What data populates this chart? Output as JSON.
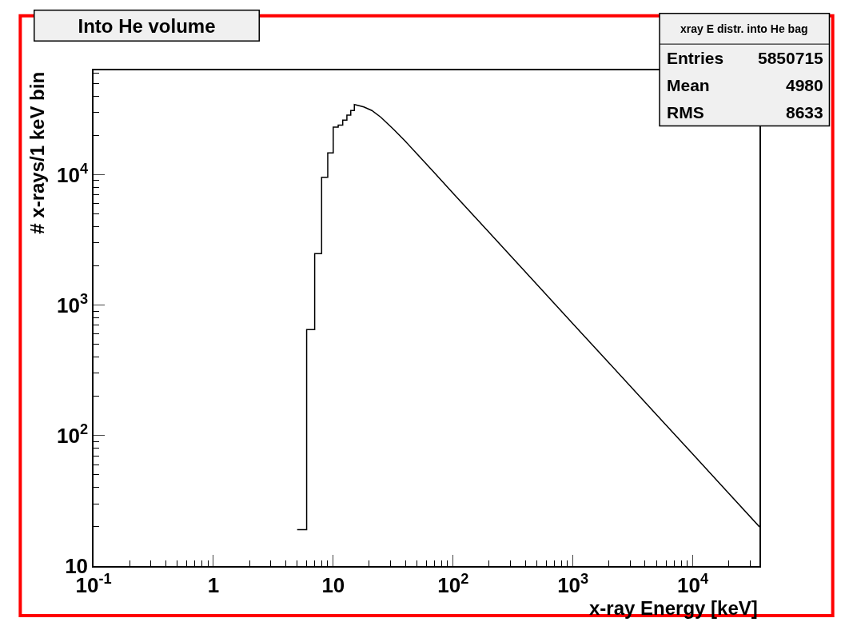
{
  "chart_data": {
    "type": "line",
    "title": "Into He volume",
    "xlabel": "x-ray Energy [keV]",
    "ylabel": "# x-rays/1 keV bin",
    "log": "xy",
    "xlim": [
      0.1,
      36000
    ],
    "ylim": [
      10,
      63000
    ],
    "xticks": [
      {
        "value": 0.1,
        "label": "10$^{-1}$"
      },
      1,
      10,
      {
        "value": 100,
        "label": "10$^{2}$"
      },
      {
        "value": 1000,
        "label": "10$^{3}$"
      },
      {
        "value": 10000,
        "label": "10$^{4}$"
      }
    ],
    "yticks": [
      10,
      {
        "value": 100,
        "label": "10$^{2}$"
      },
      {
        "value": 1000,
        "label": "10$^{3}$"
      },
      {
        "value": 10000,
        "label": "10$^{4}$"
      }
    ],
    "series": [
      {
        "color": "#000000",
        "x": [
          5,
          6,
          6,
          7,
          7,
          8,
          8,
          9,
          9,
          10,
          10,
          11,
          11,
          12,
          12,
          13,
          13,
          14,
          14,
          15,
          15,
          16,
          18,
          21,
          25,
          32,
          40,
          50,
          70,
          100,
          200,
          500,
          1000,
          2000,
          5000,
          10000,
          20000,
          36000
        ],
        "values": [
          19,
          19,
          650,
          650,
          2480,
          2480,
          9550,
          9550,
          14700,
          14700,
          23100,
          23100,
          24000,
          24000,
          26200,
          26200,
          28600,
          28600,
          31000,
          31000,
          34500,
          34000,
          33000,
          31000,
          27500,
          22200,
          18000,
          14400,
          10300,
          7200,
          3600,
          1440,
          720,
          360,
          144,
          72,
          36,
          20
        ]
      }
    ],
    "annotations": [
      "xray E distr. into He bag",
      "Entries 5850715",
      "Mean 4980",
      "RMS 8633"
    ]
  }
}
